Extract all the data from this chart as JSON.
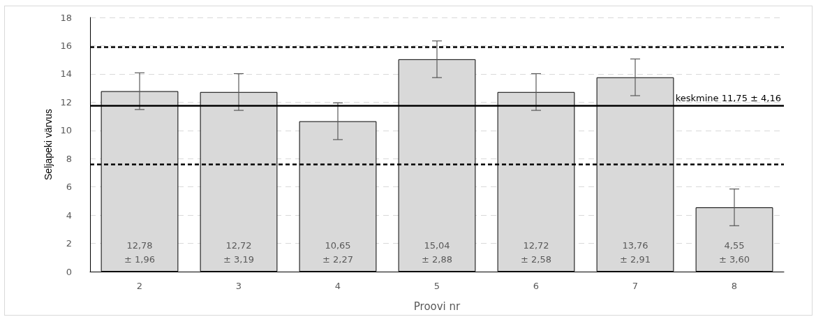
{
  "chart_data": {
    "type": "bar",
    "xlabel": "Proovi nr",
    "ylabel": "Seljapeki värvus",
    "categories": [
      "2",
      "3",
      "4",
      "5",
      "6",
      "7",
      "8"
    ],
    "values": [
      12.78,
      12.72,
      10.65,
      15.04,
      12.72,
      13.76,
      4.55
    ],
    "errors": [
      1.3,
      1.3,
      1.3,
      1.3,
      1.3,
      1.3,
      1.3
    ],
    "value_labels": [
      "12,78\n± 1,96",
      "12,72\n± 3,19",
      "10,65\n± 2,27",
      "15,04\n± 2,88",
      "12,72\n± 2,58",
      "13,76\n± 2,91",
      "4,55\n± 3,60"
    ],
    "color": "#d9d9d9",
    "ylim": [
      0,
      18
    ],
    "yticks": [
      0,
      2,
      4,
      6,
      8,
      10,
      12,
      14,
      16,
      18
    ],
    "grid": "y",
    "ref_lines": [
      {
        "axis": "y",
        "value": 11.75,
        "label": "keskmine 11,75 ± 4,16",
        "color": "#000000",
        "line_style": "solid"
      },
      {
        "axis": "y",
        "value": 15.91,
        "label": null,
        "color": "#000000",
        "line_style": "dashed"
      },
      {
        "axis": "y",
        "value": 7.59,
        "label": null,
        "color": "#000000",
        "line_style": "dashed"
      }
    ]
  }
}
